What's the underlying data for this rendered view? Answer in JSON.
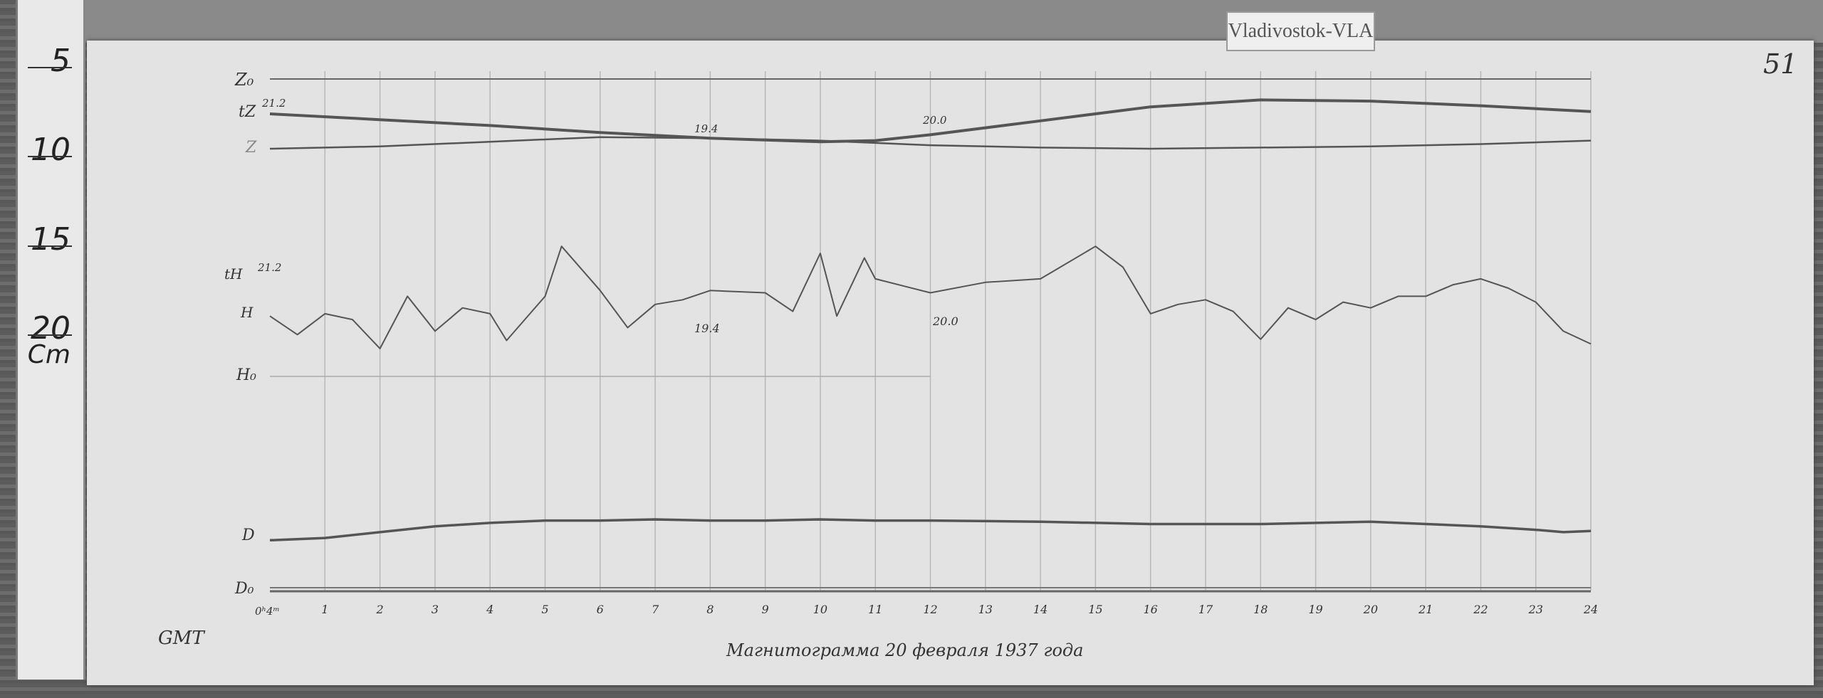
{
  "station_label": "Vladivostok-VLA",
  "sheet_number": "51",
  "ruler": {
    "marks": [
      "5",
      "10",
      "15",
      "20"
    ],
    "unit": "Cm"
  },
  "trace_labels": {
    "z0": "Z₀",
    "tz": "tZ",
    "z": "Z",
    "th": "tH",
    "h": "H",
    "h0": "H₀",
    "d": "D",
    "d0": "D₀",
    "start_time": "0ʰ4ᵐ",
    "time_zone": "GMT"
  },
  "annotations": {
    "tz_start": "21.2",
    "tz_mid": "19.4",
    "tz_late": "20.0",
    "th_start": "21.2",
    "h_mid": "19.4",
    "h_late": "20.0"
  },
  "caption": "Магнитограмма 20 февраля 1937 года",
  "colors": {
    "paper": "#e3e3e3",
    "trace": "#555555",
    "grid": "#b8b8b8"
  },
  "chart_data": {
    "type": "line",
    "xlabel": "",
    "x_ticks": [
      "1",
      "2",
      "3",
      "4",
      "5",
      "6",
      "7",
      "8",
      "9",
      "10",
      "11",
      "12",
      "13",
      "14",
      "15",
      "16",
      "17",
      "18",
      "19",
      "20",
      "21",
      "22",
      "23",
      "24"
    ],
    "xlim": [
      0,
      24
    ],
    "grid": true,
    "series": [
      {
        "name": "tZ",
        "x": [
          0,
          2,
          4,
          6,
          8,
          10,
          11,
          12,
          14,
          16,
          18,
          20,
          22,
          24
        ],
        "values": [
          32,
          27,
          22,
          16,
          11,
          8,
          9,
          14,
          26,
          38,
          44,
          43,
          39,
          34
        ]
      },
      {
        "name": "Z",
        "x": [
          0,
          2,
          4,
          6,
          8,
          10,
          12,
          14,
          16,
          18,
          20,
          22,
          24
        ],
        "values": [
          2,
          4,
          8,
          12,
          11,
          9,
          5,
          3,
          2,
          3,
          4,
          6,
          9
        ]
      },
      {
        "name": "H",
        "x": [
          0,
          0.5,
          1,
          1.5,
          2,
          2.5,
          3,
          3.5,
          4,
          4.3,
          5,
          5.3,
          6,
          6.5,
          7,
          7.5,
          8,
          9,
          9.5,
          10,
          10.3,
          10.8,
          11,
          12,
          13,
          14,
          15,
          15.5,
          16,
          16.5,
          17,
          17.5,
          18,
          18.5,
          19,
          19.5,
          20,
          20.5,
          21,
          21.5,
          22,
          22.5,
          23,
          23.5,
          24
        ],
        "values": [
          28,
          12,
          30,
          25,
          0,
          45,
          15,
          35,
          30,
          7,
          45,
          88,
          50,
          18,
          38,
          42,
          50,
          48,
          32,
          82,
          28,
          78,
          60,
          48,
          57,
          60,
          88,
          70,
          30,
          38,
          42,
          32,
          8,
          35,
          25,
          40,
          35,
          45,
          45,
          55,
          60,
          52,
          40,
          15,
          4
        ]
      },
      {
        "name": "D",
        "x": [
          0,
          1,
          2,
          3,
          4,
          5,
          6,
          7,
          8,
          9,
          10,
          11,
          12,
          14,
          16,
          18,
          20,
          22,
          23,
          23.5,
          24
        ],
        "values": [
          5,
          7,
          12,
          17,
          20,
          22,
          22,
          23,
          22,
          22,
          23,
          22,
          22,
          21,
          19,
          19,
          21,
          17,
          14,
          12,
          13
        ]
      }
    ]
  }
}
